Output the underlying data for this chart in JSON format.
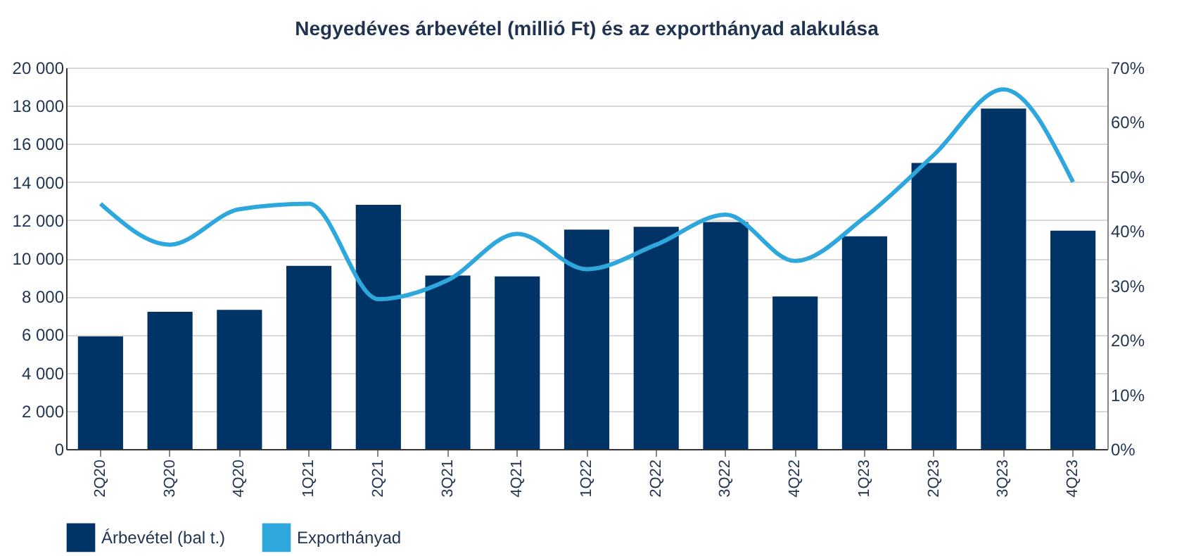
{
  "chart_data": {
    "type": "bar",
    "title": "Negyedéves árbevétel (millió Ft) és az exporthányad alakulása",
    "categories": [
      "2Q20",
      "3Q20",
      "4Q20",
      "1Q21",
      "2Q21",
      "3Q21",
      "4Q21",
      "1Q22",
      "2Q22",
      "3Q22",
      "4Q22",
      "1Q23",
      "2Q23",
      "3Q23",
      "4Q23"
    ],
    "series": [
      {
        "name": "Árbevétel (bal t.)",
        "color": "#003366",
        "values": [
          5900,
          7200,
          7300,
          9600,
          12800,
          9100,
          9050,
          11500,
          11650,
          11900,
          8000,
          11150,
          15000,
          17850,
          11450
        ]
      },
      {
        "name": "Exporthányad",
        "type": "line",
        "axis": "y2",
        "color": "#2ea8dc",
        "values": [
          45,
          37.5,
          44,
          45,
          27.5,
          31,
          39.5,
          33,
          37.5,
          43,
          34.5,
          42.5,
          54,
          66,
          49
        ]
      }
    ],
    "ylim": [
      0,
      20000
    ],
    "yticks": [
      0,
      {
        "value": 2000,
        "label": "2 000"
      },
      {
        "value": 4000,
        "label": "4 000"
      },
      {
        "value": 6000,
        "label": "6 000"
      },
      {
        "value": 8000,
        "label": "8 000"
      },
      {
        "value": 10000,
        "label": "10 000"
      },
      {
        "value": 12000,
        "label": "12 000"
      },
      {
        "value": 14000,
        "label": "14 000"
      },
      {
        "value": 16000,
        "label": "16 000"
      },
      {
        "value": 18000,
        "label": "18 000"
      },
      {
        "value": 20000,
        "label": "20 000"
      }
    ],
    "y2lim": [
      0,
      70
    ],
    "y2ticks": [
      {
        "value": 0,
        "label": "0%"
      },
      {
        "value": 10,
        "label": "10%"
      },
      {
        "value": 20,
        "label": "20%"
      },
      {
        "value": 30,
        "label": "30%"
      },
      {
        "value": 40,
        "label": "40%"
      },
      {
        "value": 50,
        "label": "50%"
      },
      {
        "value": 60,
        "label": "60%"
      },
      {
        "value": 70,
        "label": "70%"
      }
    ],
    "grid": "y",
    "legend": "bottom left",
    "marker": "none",
    "line_style": "solid"
  }
}
